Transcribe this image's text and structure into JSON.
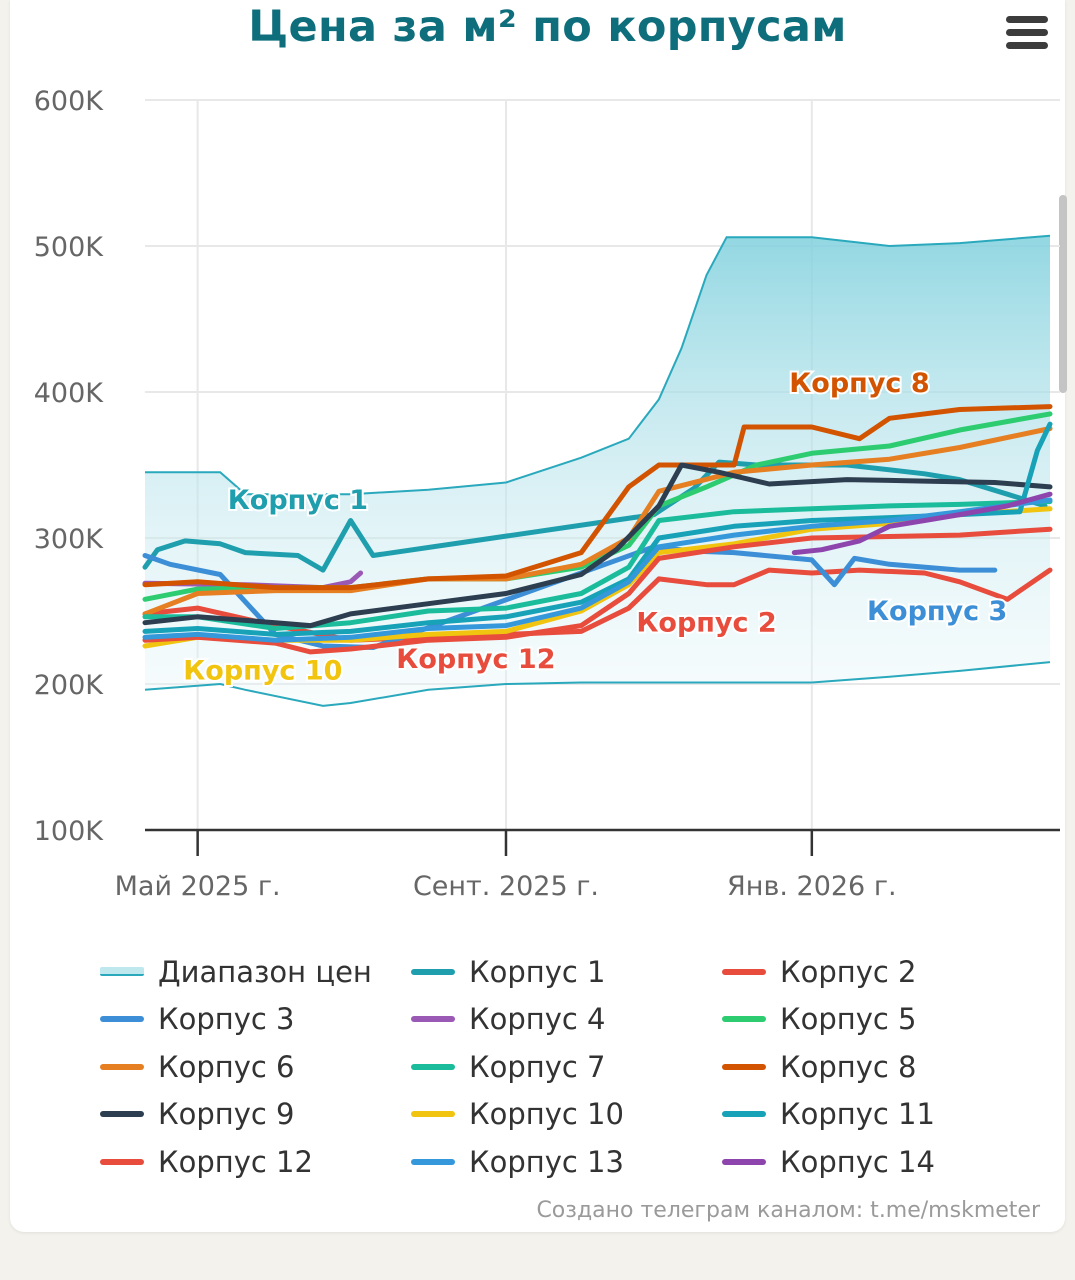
{
  "title": "Цена за м² по корпусам",
  "menu_icon": "hamburger-icon",
  "credits": "Создано телеграм каналом: t.me/mskmeter",
  "chart_data": {
    "type": "line",
    "title": "Цена за м² по корпусам",
    "xlabel": "",
    "ylabel": "",
    "ylim": [
      100000,
      600000
    ],
    "xlim": [
      "2025-04-10",
      "2026-04-10"
    ],
    "y_ticks": [
      {
        "value": 100000,
        "label": "100K"
      },
      {
        "value": 200000,
        "label": "200K"
      },
      {
        "value": 300000,
        "label": "300K"
      },
      {
        "value": 400000,
        "label": "400K"
      },
      {
        "value": 500000,
        "label": "500K"
      },
      {
        "value": 600000,
        "label": "600K"
      }
    ],
    "x_ticks": [
      {
        "value": "2025-05-01",
        "label": "Май 2025 г."
      },
      {
        "value": "2025-09-01",
        "label": "Сент. 2025 г."
      },
      {
        "value": "2026-01-01",
        "label": "Янв. 2026 г."
      }
    ],
    "grid": true,
    "legend_position": "bottom",
    "range_series": {
      "name": "Диапазон цен",
      "color": "#2aa9bd",
      "x": [
        "2025-04-10",
        "2025-05-10",
        "2025-05-20",
        "2025-06-20",
        "2025-07-01",
        "2025-08-01",
        "2025-09-01",
        "2025-10-01",
        "2025-10-20",
        "2025-11-01",
        "2025-11-10",
        "2025-11-20",
        "2025-11-28",
        "2025-12-10",
        "2026-01-01",
        "2026-02-01",
        "2026-03-01",
        "2026-04-06"
      ],
      "low": [
        196000,
        200000,
        196000,
        185000,
        187000,
        196000,
        200000,
        201000,
        201000,
        201000,
        201000,
        201000,
        201000,
        201000,
        201000,
        205000,
        209000,
        215000
      ],
      "high": [
        345000,
        345000,
        330000,
        330000,
        330000,
        333000,
        338000,
        355000,
        368000,
        395000,
        430000,
        480000,
        506000,
        506000,
        506000,
        500000,
        502000,
        507000
      ]
    },
    "series": [
      {
        "name": "Корпус 1",
        "color": "#1f9fae",
        "label": "Корпус 1",
        "x": [
          "2025-04-10",
          "2025-04-15",
          "2025-04-26",
          "2025-05-10",
          "2025-05-20",
          "2025-06-10",
          "2025-06-20",
          "2025-07-01",
          "2025-07-10",
          "2025-10-30",
          "2025-11-15",
          "2025-11-25",
          "2025-12-10",
          "2026-01-15",
          "2026-02-15",
          "2026-03-01",
          "2026-03-20",
          "2026-04-04"
        ],
        "y": [
          280000,
          292000,
          298000,
          296000,
          290000,
          288000,
          278000,
          312000,
          288000,
          316000,
          334000,
          352000,
          350000,
          350000,
          344000,
          340000,
          330000,
          322000
        ]
      },
      {
        "name": "Корпус 2",
        "color": "#e74c3c",
        "label": "Корпус 2",
        "x": [
          "2025-04-10",
          "2025-05-01",
          "2025-06-01",
          "2025-07-01",
          "2025-08-01",
          "2025-09-01",
          "2025-10-01",
          "2025-10-20",
          "2025-11-01",
          "2025-11-20",
          "2025-12-01",
          "2025-12-15",
          "2026-01-01",
          "2026-01-20",
          "2026-02-15",
          "2026-03-01",
          "2026-03-20",
          "2026-04-06"
        ],
        "y": [
          248000,
          252000,
          240000,
          230000,
          232000,
          234000,
          236000,
          252000,
          272000,
          268000,
          268000,
          278000,
          276000,
          278000,
          276000,
          270000,
          258000,
          278000
        ]
      },
      {
        "name": "Корпус 3",
        "color": "#3c8fd6",
        "label": "Корпус 3",
        "x": [
          "2025-04-10",
          "2025-04-20",
          "2025-05-10",
          "2025-06-01",
          "2025-06-20",
          "2025-07-10",
          "2025-10-30",
          "2025-11-15",
          "2025-12-01",
          "2026-01-01",
          "2026-01-10",
          "2026-01-18",
          "2026-02-01",
          "2026-03-01",
          "2026-03-15"
        ],
        "y": [
          288000,
          282000,
          275000,
          234000,
          226000,
          225000,
          294000,
          291000,
          290000,
          285000,
          268000,
          286000,
          282000,
          278000,
          278000
        ]
      },
      {
        "name": "Корпус 4",
        "color": "#9b59b6",
        "label": "",
        "x": [
          "2025-04-10",
          "2025-05-20",
          "2025-06-20",
          "2025-07-01",
          "2025-07-05"
        ],
        "y": [
          269000,
          268000,
          266000,
          270000,
          276000
        ]
      },
      {
        "name": "Корпус 5",
        "color": "#2ecc71",
        "label": "",
        "x": [
          "2025-04-10",
          "2025-05-01",
          "2025-06-01",
          "2025-07-01",
          "2025-08-01",
          "2025-09-01",
          "2025-10-01",
          "2025-10-20",
          "2025-11-01",
          "2025-11-20",
          "2025-12-10",
          "2026-01-01",
          "2026-02-01",
          "2026-03-01",
          "2026-04-06"
        ],
        "y": [
          258000,
          265000,
          266000,
          266000,
          272000,
          272000,
          280000,
          295000,
          322000,
          335000,
          350000,
          358000,
          363000,
          374000,
          385000
        ]
      },
      {
        "name": "Корпус 6",
        "color": "#e67e22",
        "label": "",
        "x": [
          "2025-04-10",
          "2025-05-01",
          "2025-06-01",
          "2025-07-01",
          "2025-08-01",
          "2025-09-01",
          "2025-10-01",
          "2025-10-20",
          "2025-11-01",
          "2025-12-01",
          "2026-01-01",
          "2026-02-01",
          "2026-03-01",
          "2026-04-06"
        ],
        "y": [
          248000,
          262000,
          264000,
          264000,
          272000,
          272000,
          282000,
          300000,
          332000,
          345000,
          350000,
          354000,
          362000,
          375000
        ]
      },
      {
        "name": "Корпус 7",
        "color": "#1abc9c",
        "label": "",
        "x": [
          "2025-04-10",
          "2025-05-01",
          "2025-06-01",
          "2025-07-01",
          "2025-08-01",
          "2025-09-01",
          "2025-10-01",
          "2025-10-20",
          "2025-11-01",
          "2025-12-01",
          "2026-01-01",
          "2026-02-01",
          "2026-03-01",
          "2026-04-06"
        ],
        "y": [
          246000,
          246000,
          238000,
          242000,
          250000,
          252000,
          262000,
          280000,
          312000,
          318000,
          320000,
          322000,
          323000,
          325000
        ]
      },
      {
        "name": "Корпус 8",
        "color": "#d35400",
        "label": "Корпус 8",
        "x": [
          "2025-04-10",
          "2025-05-01",
          "2025-06-01",
          "2025-07-01",
          "2025-08-01",
          "2025-09-01",
          "2025-10-01",
          "2025-10-20",
          "2025-11-01",
          "2025-12-01",
          "2025-12-05",
          "2026-01-01",
          "2026-01-20",
          "2026-02-01",
          "2026-03-01",
          "2026-04-06"
        ],
        "y": [
          268000,
          270000,
          266000,
          266000,
          272000,
          274000,
          290000,
          335000,
          350000,
          350000,
          376000,
          376000,
          368000,
          382000,
          388000,
          390000
        ]
      },
      {
        "name": "Корпус 9",
        "color": "#2c3e50",
        "label": "",
        "x": [
          "2025-04-10",
          "2025-05-01",
          "2025-06-01",
          "2025-06-15",
          "2025-07-01",
          "2025-08-01",
          "2025-09-01",
          "2025-10-01",
          "2025-10-15",
          "2025-11-01",
          "2025-11-10",
          "2025-11-25",
          "2025-12-15",
          "2026-01-15",
          "2026-02-15",
          "2026-03-15",
          "2026-04-06"
        ],
        "y": [
          242000,
          246000,
          242000,
          240000,
          248000,
          255000,
          262000,
          275000,
          292000,
          322000,
          350000,
          345000,
          337000,
          340000,
          339000,
          338000,
          335000
        ]
      },
      {
        "name": "Корпус 10",
        "color": "#f1c40f",
        "label": "Корпус 10",
        "x": [
          "2025-04-10",
          "2025-05-01",
          "2025-06-01",
          "2025-07-01",
          "2025-08-01",
          "2025-09-01",
          "2025-10-01",
          "2025-10-20",
          "2025-11-01",
          "2025-12-01",
          "2026-01-01",
          "2026-02-01",
          "2026-03-01",
          "2026-04-06"
        ],
        "y": [
          226000,
          232000,
          230000,
          230000,
          234000,
          236000,
          250000,
          268000,
          290000,
          296000,
          306000,
          310000,
          316000,
          320000
        ]
      },
      {
        "name": "Корпус 11",
        "color": "#17a2b8",
        "label": "",
        "x": [
          "2025-04-10",
          "2025-05-01",
          "2025-06-01",
          "2025-07-01",
          "2025-08-01",
          "2025-09-01",
          "2025-10-01",
          "2025-10-20",
          "2025-11-01",
          "2025-12-01",
          "2026-01-01",
          "2026-02-01",
          "2026-03-01",
          "2026-03-25",
          "2026-04-01",
          "2026-04-06"
        ],
        "y": [
          236000,
          238000,
          234000,
          236000,
          242000,
          246000,
          256000,
          272000,
          300000,
          308000,
          312000,
          314000,
          316000,
          318000,
          360000,
          378000
        ]
      },
      {
        "name": "Корпус 12",
        "color": "#e74c3c",
        "label": "Корпус 12",
        "x": [
          "2025-04-10",
          "2025-05-01",
          "2025-06-01",
          "2025-06-15",
          "2025-07-01",
          "2025-08-01",
          "2025-09-01",
          "2025-10-01",
          "2025-10-20",
          "2025-11-01",
          "2025-12-01",
          "2026-01-01",
          "2026-02-01",
          "2026-03-01",
          "2026-04-06"
        ],
        "y": [
          230000,
          232000,
          228000,
          222000,
          224000,
          230000,
          232000,
          240000,
          262000,
          286000,
          294000,
          300000,
          301000,
          302000,
          306000
        ]
      },
      {
        "name": "Корпус 13",
        "color": "#3498db",
        "label": "",
        "x": [
          "2025-04-10",
          "2025-05-01",
          "2025-06-01",
          "2025-07-01",
          "2025-08-01",
          "2025-09-01",
          "2025-10-01",
          "2025-10-20",
          "2025-11-01",
          "2025-12-01",
          "2026-01-01",
          "2026-02-01",
          "2026-03-01",
          "2026-04-06"
        ],
        "y": [
          232000,
          234000,
          230000,
          232000,
          238000,
          240000,
          252000,
          270000,
          294000,
          302000,
          308000,
          312000,
          318000,
          326000
        ]
      },
      {
        "name": "Корпус 14",
        "color": "#8e44ad",
        "label": "",
        "x": [
          "2025-12-25",
          "2026-01-05",
          "2026-01-20",
          "2026-02-01",
          "2026-02-15",
          "2026-03-01",
          "2026-03-20",
          "2026-04-06"
        ],
        "y": [
          290000,
          292000,
          298000,
          308000,
          312000,
          316000,
          322000,
          330000
        ]
      }
    ]
  },
  "label_positions_note": ""
}
